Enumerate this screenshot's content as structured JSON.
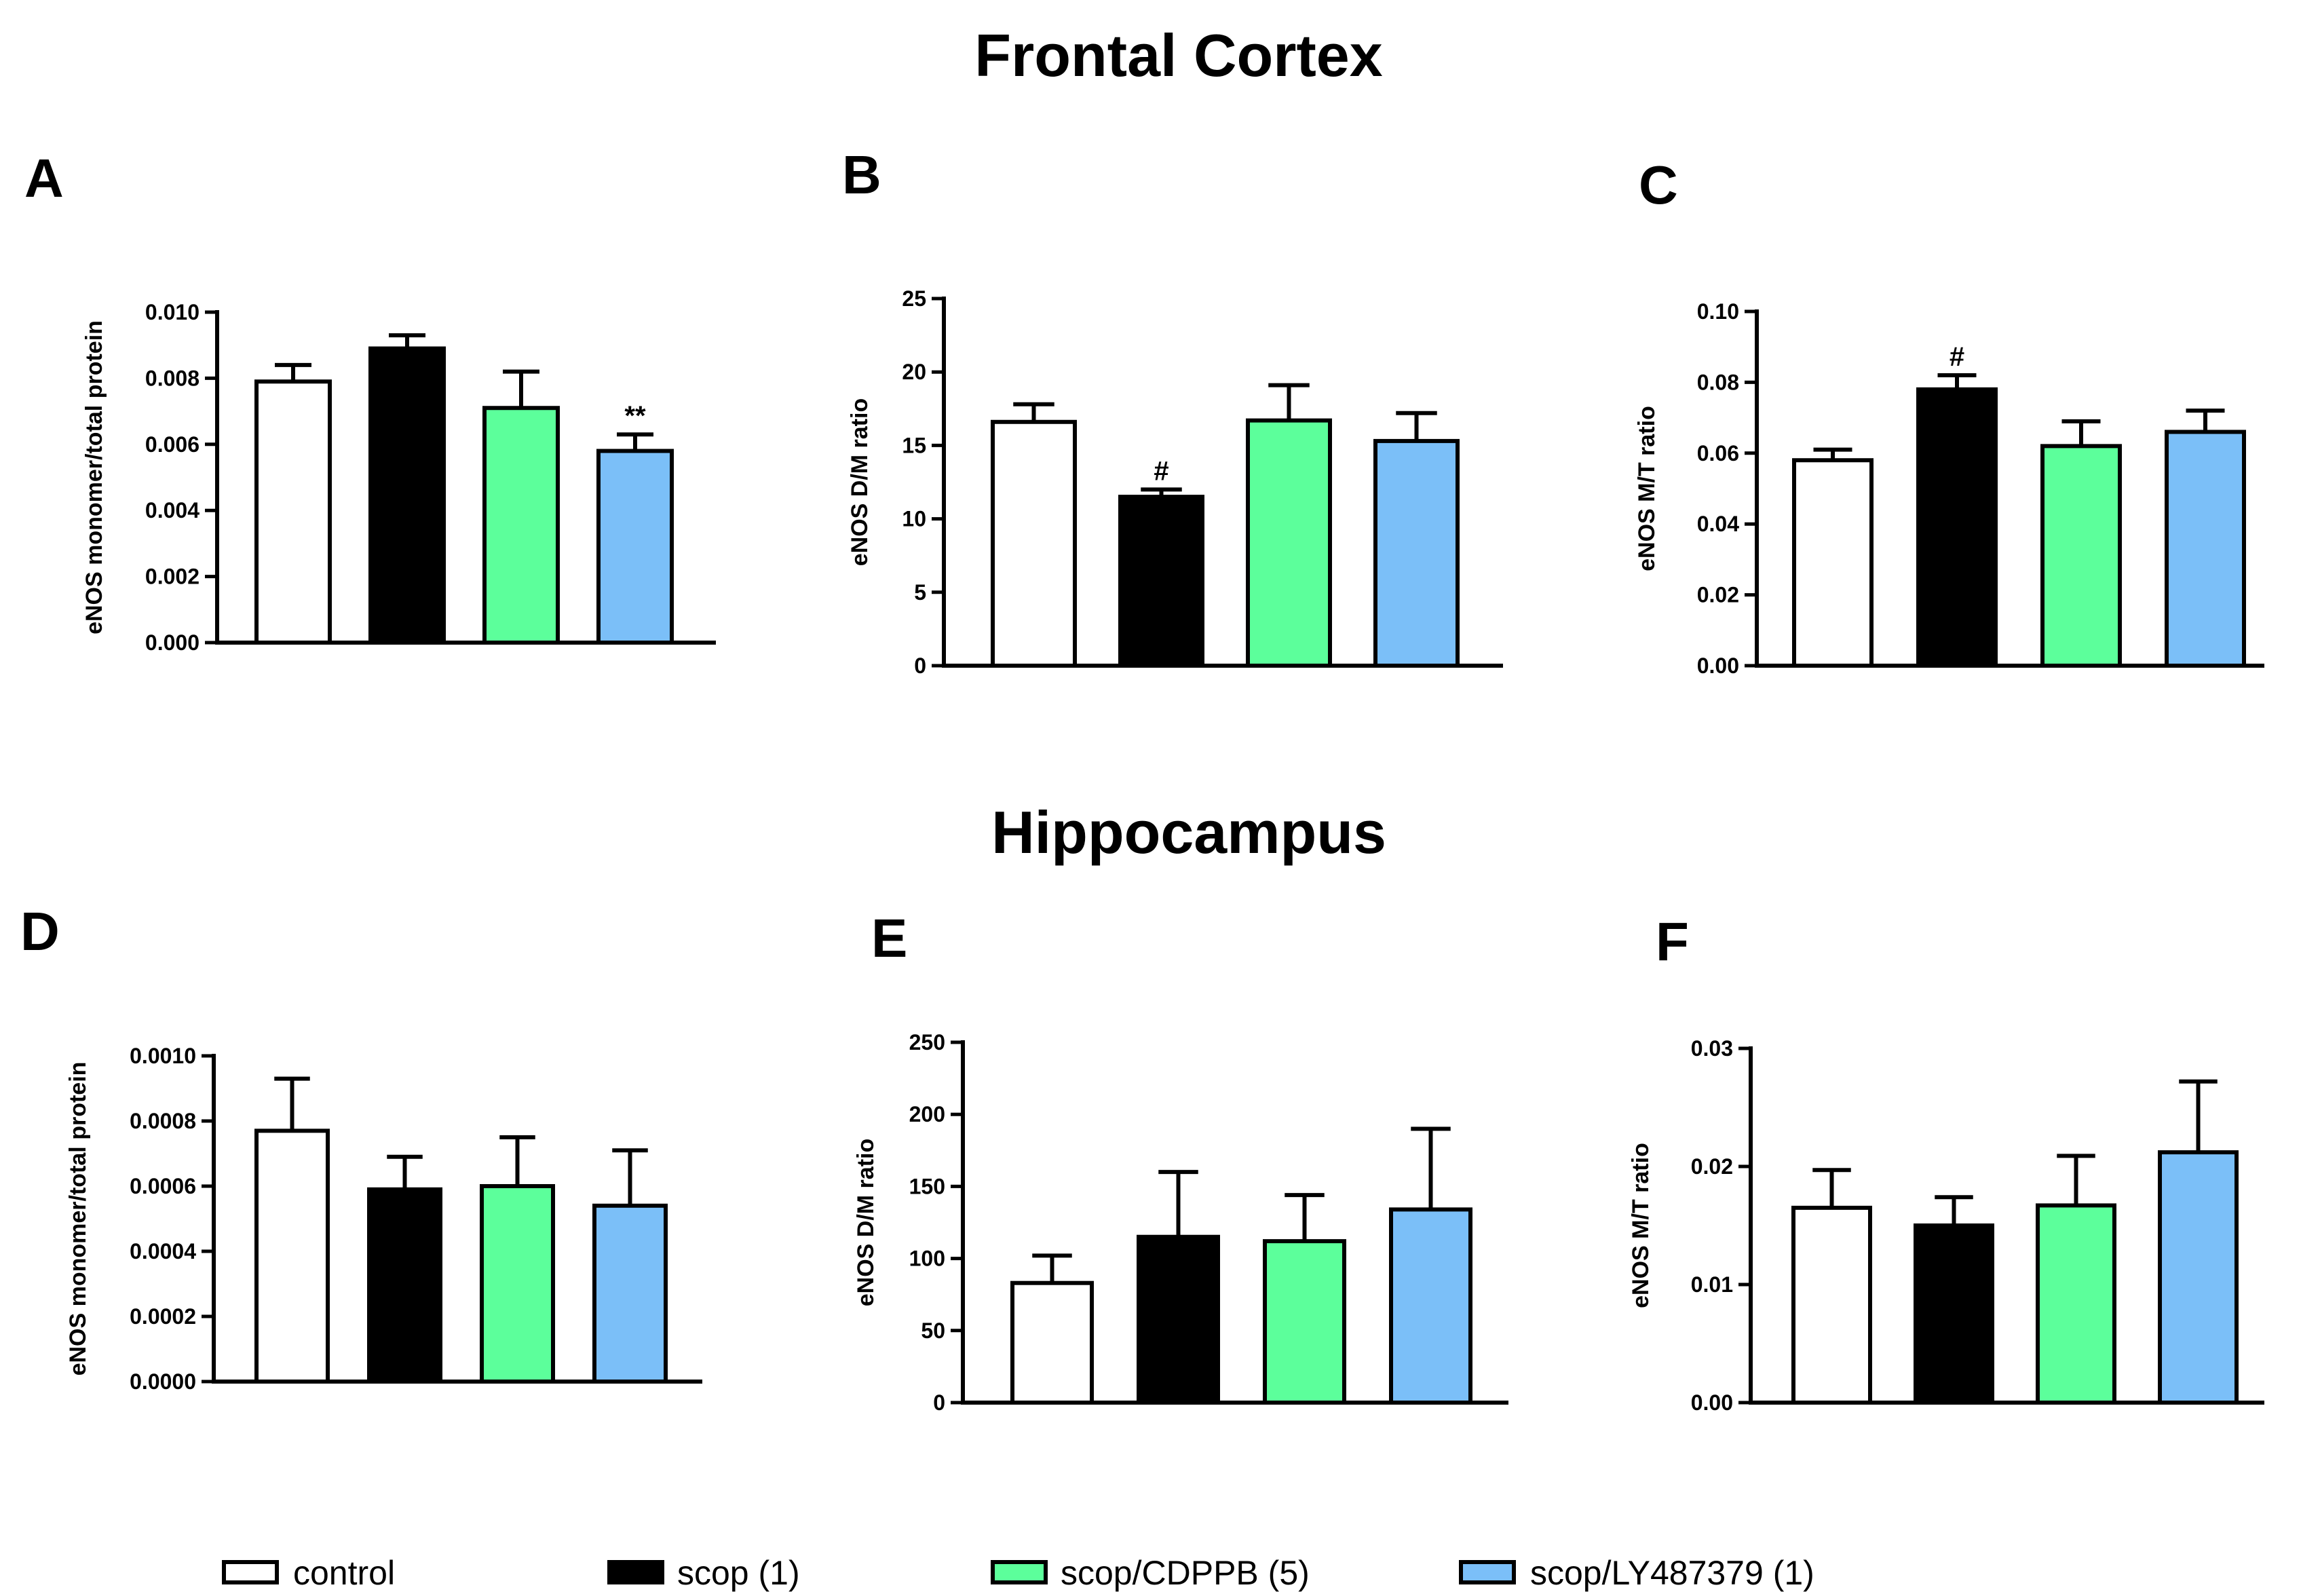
{
  "sections": [
    {
      "title": "Frontal Cortex"
    },
    {
      "title": "Hippocampus"
    }
  ],
  "series_colors": [
    "#ffffff",
    "#000000",
    "#5cff9b",
    "#7bbff8"
  ],
  "legend": [
    "control",
    "scop (1)",
    "scop/CDPPB (5)",
    "scop/LY487379 (1)"
  ],
  "chart_data": [
    {
      "type": "bar",
      "panel": "A",
      "section": "Frontal Cortex",
      "ylabel": "eNOS monomer/total protein",
      "categories": [
        "control",
        "scop (1)",
        "scop/CDPPB (5)",
        "scop/LY487379 (1)"
      ],
      "values": [
        0.0079,
        0.0089,
        0.0071,
        0.0058
      ],
      "errors": [
        0.0005,
        0.0004,
        0.0011,
        0.0005
      ],
      "annotations": [
        "",
        "",
        "",
        "**"
      ],
      "ylim": [
        0,
        0.01
      ],
      "ticks": [
        "0.000",
        "0.002",
        "0.004",
        "0.006",
        "0.008",
        "0.010"
      ]
    },
    {
      "type": "bar",
      "panel": "B",
      "section": "Frontal Cortex",
      "ylabel": "eNOS D/M ratio",
      "categories": [
        "control",
        "scop (1)",
        "scop/CDPPB (5)",
        "scop/LY487379 (1)"
      ],
      "values": [
        16.6,
        11.5,
        16.7,
        15.3
      ],
      "errors": [
        1.2,
        0.5,
        2.4,
        1.9
      ],
      "annotations": [
        "",
        "#",
        "",
        ""
      ],
      "ylim": [
        0,
        25
      ],
      "ticks": [
        "0",
        "5",
        "10",
        "15",
        "20",
        "25"
      ]
    },
    {
      "type": "bar",
      "panel": "C",
      "section": "Frontal Cortex",
      "ylabel": "eNOS M/T ratio",
      "categories": [
        "control",
        "scop (1)",
        "scop/CDPPB (5)",
        "scop/LY487379 (1)"
      ],
      "values": [
        0.058,
        0.078,
        0.062,
        0.066
      ],
      "errors": [
        0.003,
        0.004,
        0.007,
        0.006
      ],
      "annotations": [
        "",
        "#",
        "",
        ""
      ],
      "ylim": [
        0,
        0.1
      ],
      "ticks": [
        "0.00",
        "0.02",
        "0.04",
        "0.06",
        "0.08",
        "0.10"
      ]
    },
    {
      "type": "bar",
      "panel": "D",
      "section": "Hippocampus",
      "ylabel": "eNOS monomer/total protein",
      "categories": [
        "control",
        "scop (1)",
        "scop/CDPPB (5)",
        "scop/LY487379 (1)"
      ],
      "values": [
        0.00077,
        0.00059,
        0.0006,
        0.00054
      ],
      "errors": [
        0.00016,
        0.0001,
        0.00015,
        0.00017
      ],
      "annotations": [
        "",
        "",
        "",
        ""
      ],
      "ylim": [
        0,
        0.001
      ],
      "ticks": [
        "0.0000",
        "0.0002",
        "0.0004",
        "0.0006",
        "0.0008",
        "0.0010"
      ]
    },
    {
      "type": "bar",
      "panel": "E",
      "section": "Hippocampus",
      "ylabel": "eNOS D/M ratio",
      "categories": [
        "control",
        "scop (1)",
        "scop/CDPPB (5)",
        "scop/LY487379 (1)"
      ],
      "values": [
        83,
        115,
        112,
        134
      ],
      "errors": [
        19,
        45,
        32,
        56
      ],
      "annotations": [
        "",
        "",
        "",
        ""
      ],
      "ylim": [
        0,
        250
      ],
      "ticks": [
        "0",
        "50",
        "100",
        "150",
        "200",
        "250"
      ]
    },
    {
      "type": "bar",
      "panel": "F",
      "section": "Hippocampus",
      "ylabel": "eNOS M/T ratio",
      "categories": [
        "control",
        "scop (1)",
        "scop/CDPPB (5)",
        "scop/LY487379 (1)"
      ],
      "values": [
        0.0165,
        0.015,
        0.0167,
        0.0212
      ],
      "errors": [
        0.0032,
        0.0024,
        0.0042,
        0.006
      ],
      "annotations": [
        "",
        "",
        "",
        ""
      ],
      "ylim": [
        0,
        0.03
      ],
      "ticks": [
        "0.00",
        "0.01",
        "0.02",
        "0.03"
      ]
    }
  ]
}
